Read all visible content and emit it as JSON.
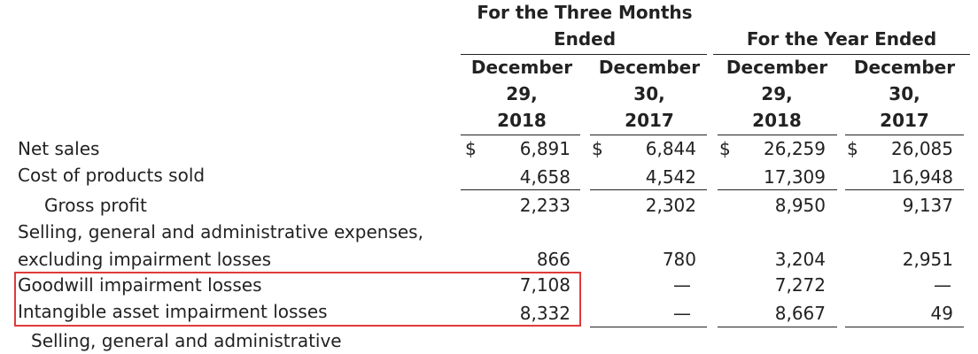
{
  "header": {
    "group1": [
      "For the Three Months",
      "Ended"
    ],
    "group2": "For the Year Ended",
    "columns": [
      [
        "December",
        "29,",
        "2018"
      ],
      [
        "December",
        "30,",
        "2017"
      ],
      [
        "December",
        "29,",
        "2018"
      ],
      [
        "December",
        "30,",
        "2017"
      ]
    ]
  },
  "currency_symbol": "$",
  "rows": {
    "net_sales": {
      "label": "Net sales",
      "values": [
        "6,891",
        "6,844",
        "26,259",
        "26,085"
      ]
    },
    "cost": {
      "label": "Cost of products sold",
      "values": [
        "4,658",
        "4,542",
        "17,309",
        "16,948"
      ]
    },
    "gross": {
      "label": "Gross profit",
      "values": [
        "2,233",
        "2,302",
        "8,950",
        "9,137"
      ]
    },
    "sga": {
      "label_line1": "Selling, general and administrative expenses,",
      "label_line2": "excluding impairment losses",
      "values": [
        "866",
        "780",
        "3,204",
        "2,951"
      ]
    },
    "goodwill": {
      "label": "Goodwill impairment losses",
      "values": [
        "7,108",
        "—",
        "7,272",
        "—"
      ]
    },
    "intangible": {
      "label": "Intangible asset impairment losses",
      "values": [
        "8,332",
        "—",
        "8,667",
        "49"
      ]
    },
    "sga2": {
      "label": "Selling, general and administrative"
    }
  },
  "highlight_color": "#e03a3a"
}
